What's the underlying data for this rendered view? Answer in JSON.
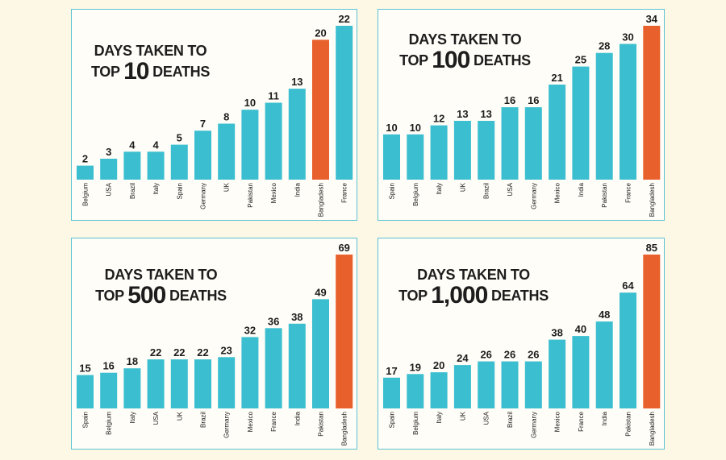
{
  "colors": {
    "bar": "#3bbfd0",
    "highlight": "#e8602c",
    "frame": "#5cc3d4",
    "background": "#fdf7e6"
  },
  "chart_data": [
    {
      "type": "bar",
      "title_line1": "DAYS TAKEN TO",
      "title_pre": "TOP",
      "title_number": "10",
      "title_post": "DEATHS",
      "categories": [
        "Belgium",
        "USA",
        "Brazil",
        "Italy",
        "Spain",
        "Germany",
        "UK",
        "Pakistan",
        "Mexico",
        "India",
        "Bangladesh",
        "France"
      ],
      "values": [
        2,
        3,
        4,
        4,
        5,
        7,
        8,
        10,
        11,
        13,
        20,
        22
      ],
      "highlight": "Bangladesh",
      "ylim": [
        0,
        22
      ]
    },
    {
      "type": "bar",
      "title_line1": "DAYS TAKEN TO",
      "title_pre": "TOP",
      "title_number": "100",
      "title_post": "DEATHS",
      "categories": [
        "Spain",
        "Belgium",
        "Italy",
        "UK",
        "Brazil",
        "USA",
        "Germany",
        "Mexico",
        "India",
        "Pakistan",
        "France",
        "Bangladesh"
      ],
      "values": [
        10,
        10,
        12,
        13,
        13,
        16,
        16,
        21,
        25,
        28,
        30,
        34
      ],
      "highlight": "Bangladesh",
      "ylim": [
        0,
        34
      ]
    },
    {
      "type": "bar",
      "title_line1": "DAYS TAKEN TO",
      "title_pre": "TOP",
      "title_number": "500",
      "title_post": "DEATHS",
      "categories": [
        "Spain",
        "Belgium",
        "Italy",
        "USA",
        "UK",
        "Brazil",
        "Germany",
        "Mexico",
        "France",
        "India",
        "Pakistan",
        "Bangladesh"
      ],
      "values": [
        15,
        16,
        18,
        22,
        22,
        22,
        23,
        32,
        36,
        38,
        49,
        69
      ],
      "highlight": "Bangladesh",
      "ylim": [
        0,
        69
      ]
    },
    {
      "type": "bar",
      "title_line1": "DAYS TAKEN TO",
      "title_pre": "TOP",
      "title_number": "1,000",
      "title_post": "DEATHS",
      "categories": [
        "Spain",
        "Belgium",
        "Italy",
        "UK",
        "USA",
        "Brazil",
        "Germany",
        "Mexico",
        "France",
        "India",
        "Pakistan",
        "Bangladesh"
      ],
      "values": [
        17,
        19,
        20,
        24,
        26,
        26,
        26,
        38,
        40,
        48,
        64,
        85
      ],
      "highlight": "Bangladesh",
      "ylim": [
        0,
        85
      ]
    }
  ]
}
